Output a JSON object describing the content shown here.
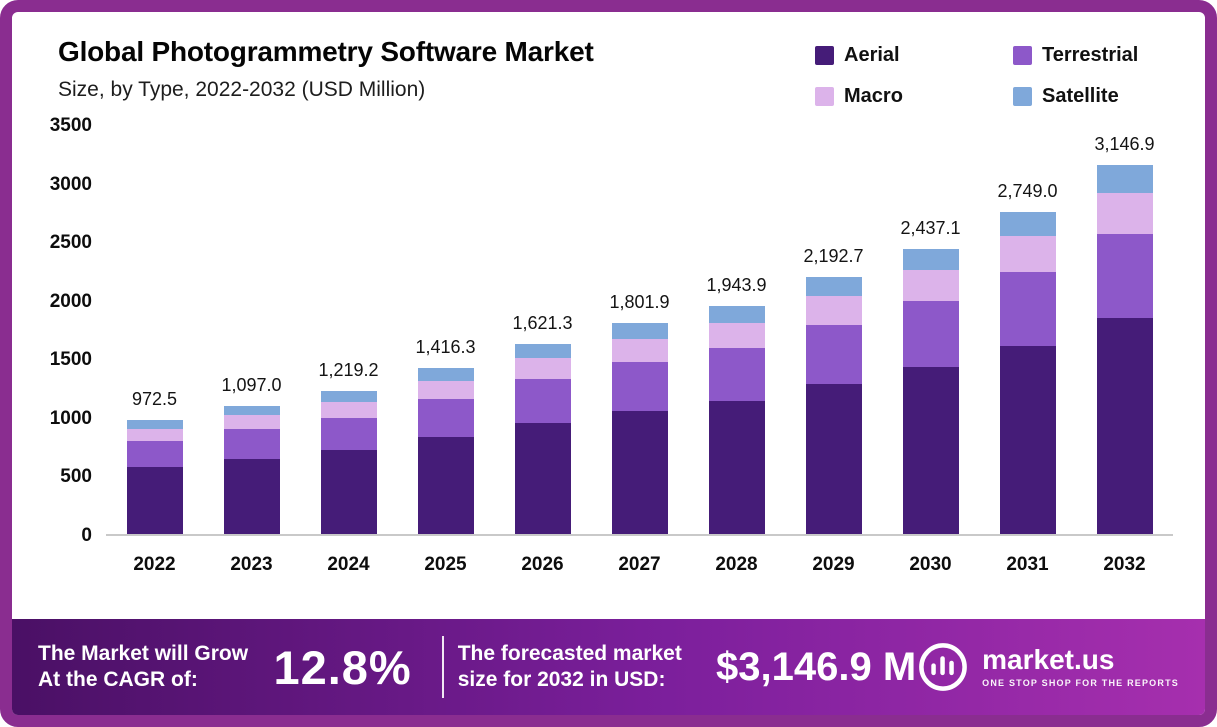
{
  "header": {
    "title": "Global Photogrammetry Software Market",
    "subtitle": "Size, by Type, 2022-2032 (USD Million)"
  },
  "chart_data": {
    "type": "bar",
    "stacked": true,
    "title": "Global Photogrammetry Software Market",
    "subtitle": "Size, by Type, 2022-2032 (USD Million)",
    "xlabel": "",
    "ylabel": "USD Million",
    "categories": [
      "2022",
      "2023",
      "2024",
      "2025",
      "2026",
      "2027",
      "2028",
      "2029",
      "2030",
      "2031",
      "2032"
    ],
    "series": [
      {
        "name": "Aerial",
        "color": "#451c78",
        "values": [
          568.9,
          641.7,
          713.2,
          828.5,
          948.5,
          1054.1,
          1137.2,
          1282.7,
          1425.7,
          1608.2,
          1840.9
        ]
      },
      {
        "name": "Terrestrial",
        "color": "#8d58c9",
        "values": [
          223.7,
          252.3,
          280.4,
          325.7,
          372.9,
          414.4,
          447.1,
          504.3,
          560.5,
          632.3,
          723.8
        ]
      },
      {
        "name": "Macro",
        "color": "#dcb3ea",
        "values": [
          107.0,
          120.7,
          134.1,
          155.8,
          178.3,
          198.2,
          213.8,
          241.2,
          268.1,
          302.4,
          346.2
        ]
      },
      {
        "name": "Satellite",
        "color": "#7fa8da",
        "values": [
          72.9,
          82.3,
          91.5,
          106.3,
          121.6,
          135.2,
          145.8,
          164.5,
          182.8,
          206.1,
          236.0
        ]
      }
    ],
    "totals": [
      972.5,
      1097.0,
      1219.2,
      1416.3,
      1621.3,
      1801.9,
      1943.9,
      2192.7,
      2437.1,
      2749.0,
      3146.9
    ],
    "total_labels": [
      "972.5",
      "1,097.0",
      "1,219.2",
      "1,416.3",
      "1,621.3",
      "1,801.9",
      "1,943.9",
      "2,192.7",
      "2,437.1",
      "2,749.0",
      "3,146.9"
    ],
    "ylim": [
      0,
      3500
    ],
    "yticks": [
      0,
      500,
      1000,
      1500,
      2000,
      2500,
      3000,
      3500
    ],
    "grid": false,
    "legend_position": "top-right"
  },
  "footer": {
    "cagr_label": "The Market will Grow At the CAGR of:",
    "cagr_value": "12.8%",
    "forecast_label": "The forecasted market size for 2032 in USD:",
    "forecast_value": "$3,146.9 M",
    "brand_name": "market.us",
    "brand_tagline": "ONE STOP SHOP FOR THE REPORTS"
  }
}
